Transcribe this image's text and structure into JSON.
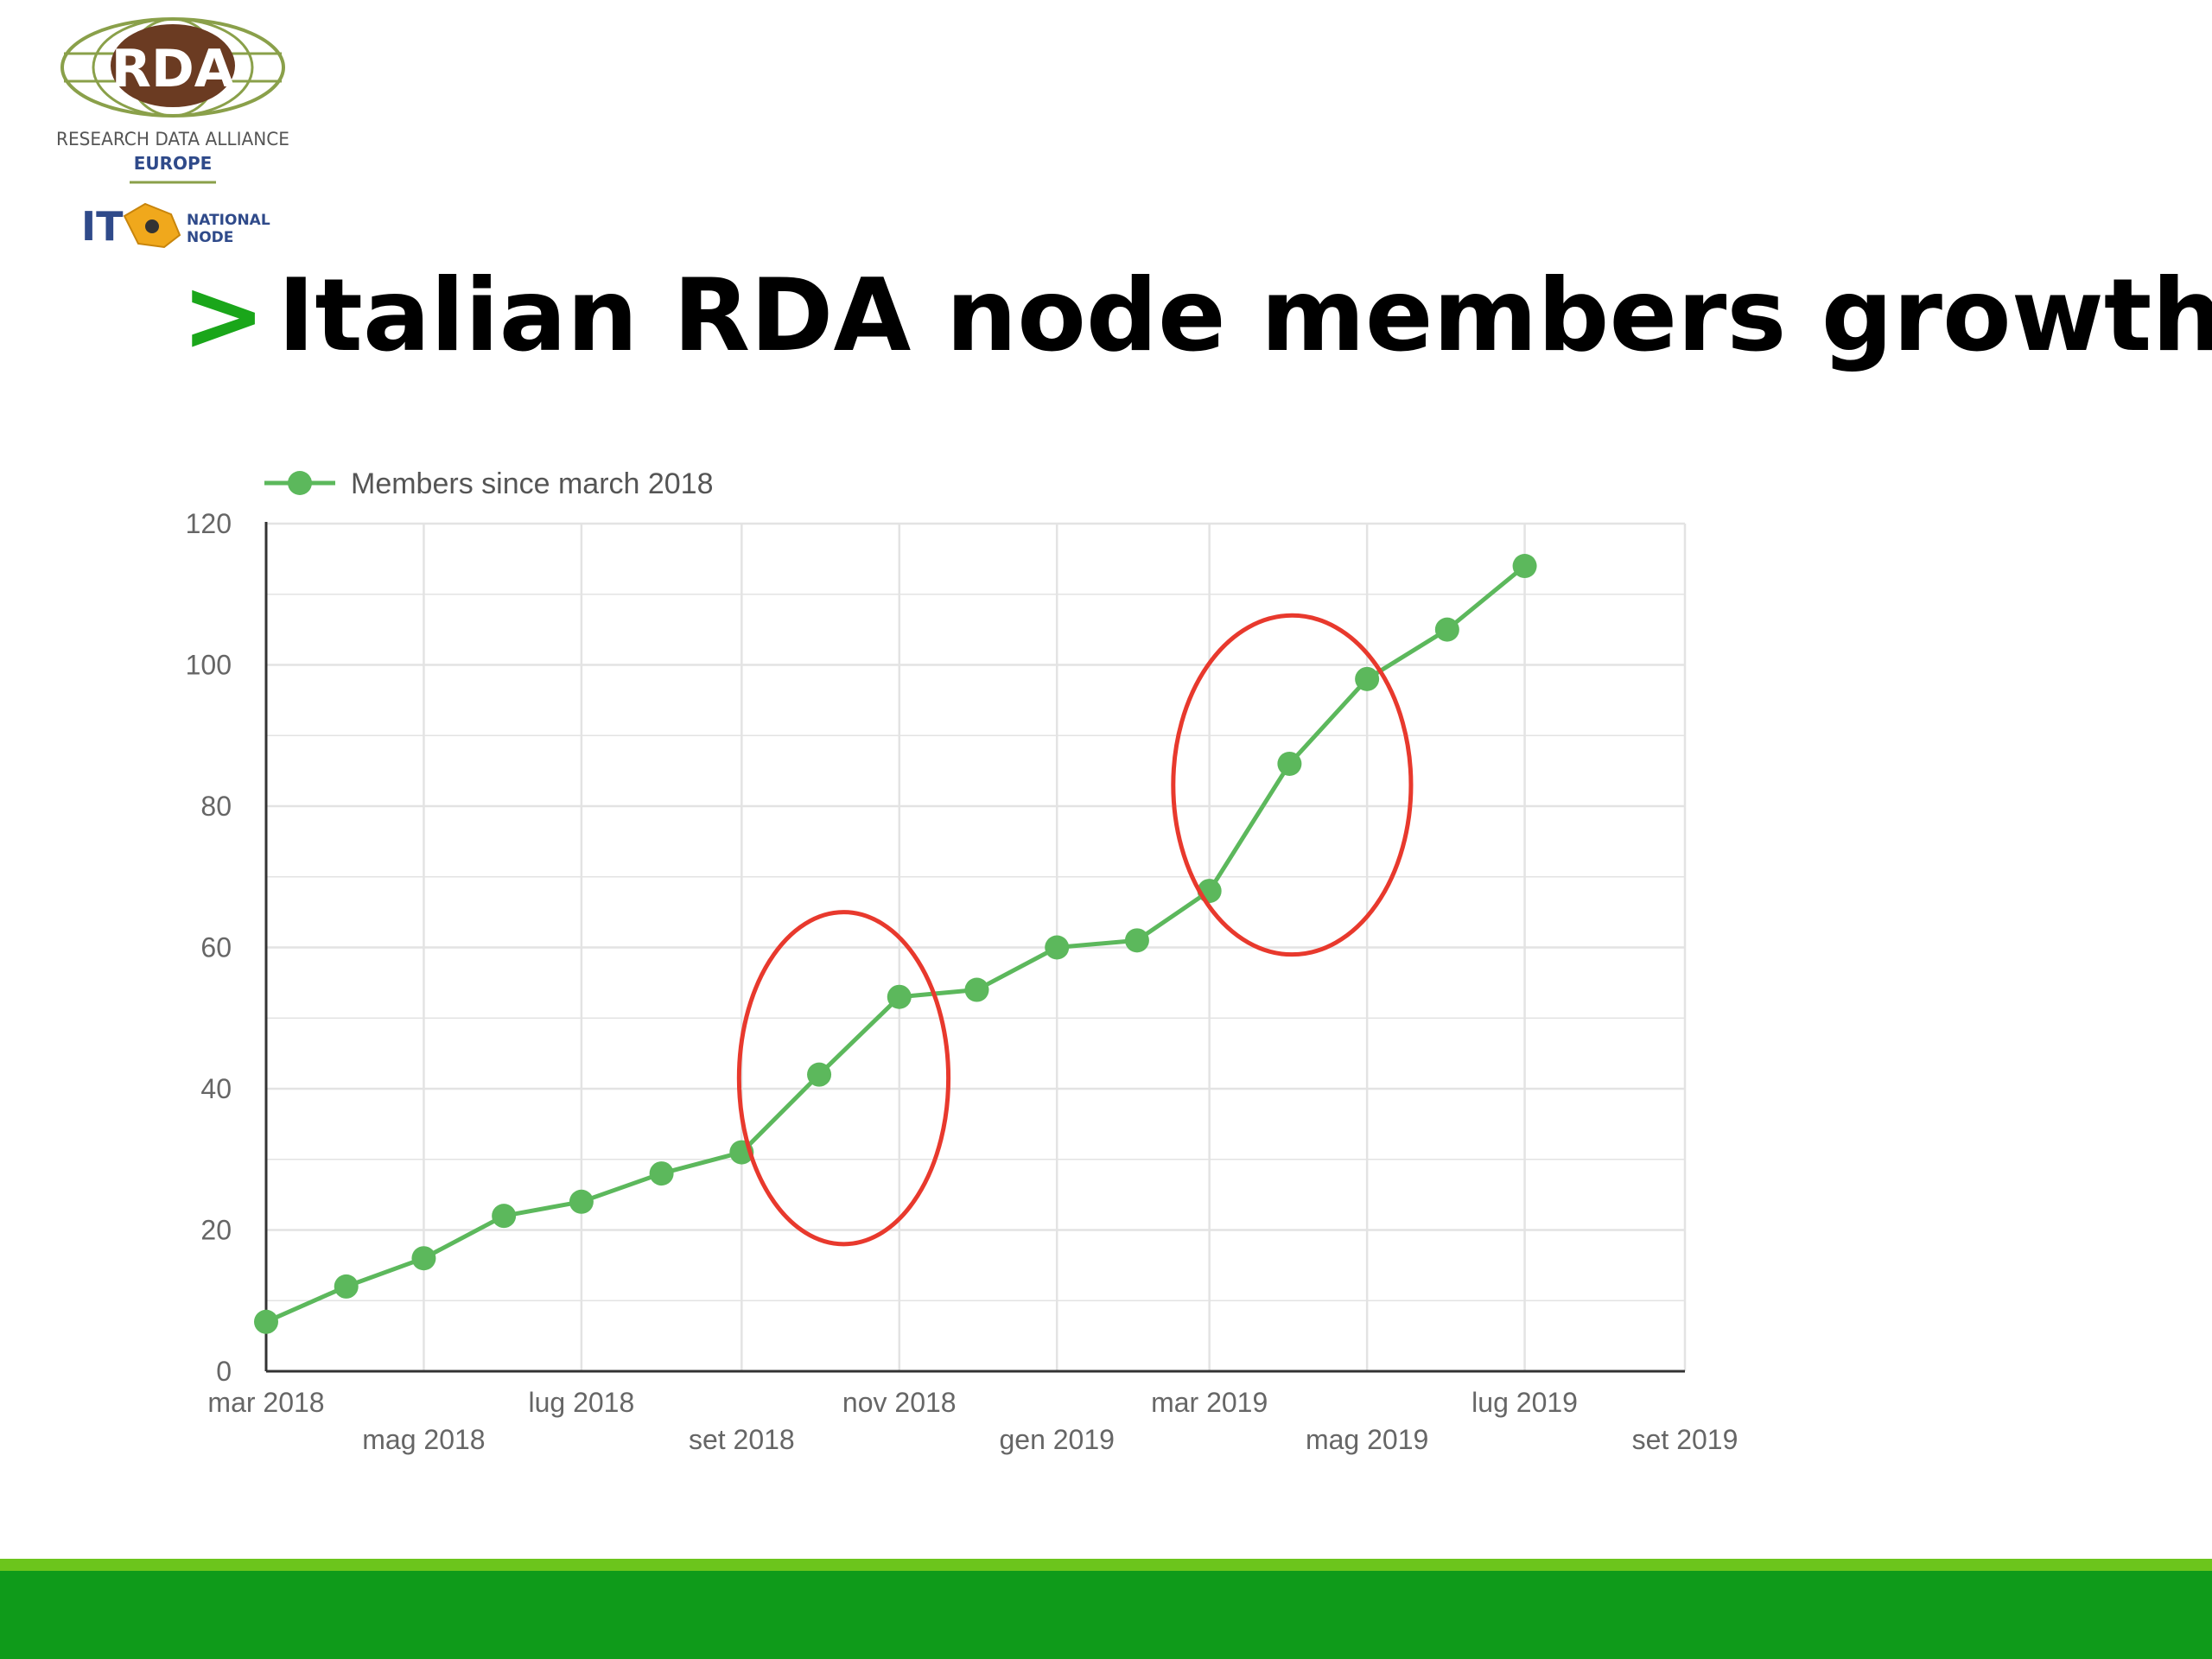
{
  "logo": {
    "badge_text": "RDA",
    "line1": "RESEARCH DATA ALLIANCE",
    "line2": "EUROPE",
    "node_code": "IT",
    "node_label_1": "NATIONAL",
    "node_label_2": "NODE"
  },
  "slide": {
    "marker": ">",
    "title": "Italian RDA node members growth"
  },
  "colors": {
    "line": "#5cb85c",
    "annotation": "#e8392d",
    "grid": "#e3e3e3",
    "axis": "#333333",
    "title_marker": "#1aa61a",
    "footer_light": "#6cc51c",
    "footer_dark": "#0f9b1a"
  },
  "chart_data": {
    "type": "line",
    "title": "",
    "xlabel": "",
    "ylabel": "",
    "ylim": [
      0,
      120
    ],
    "yticks": [
      0,
      20,
      40,
      60,
      80,
      100,
      120
    ],
    "xlim": [
      "2018-03-01",
      "2019-09-01"
    ],
    "xtick_labels": [
      "mar 2018",
      "mag 2018",
      "lug 2018",
      "set 2018",
      "nov 2018",
      "gen 2019",
      "mar 2019",
      "mag 2019",
      "lug 2019",
      "set 2019"
    ],
    "xtick_dates": [
      "2018-03-01",
      "2018-05-01",
      "2018-07-01",
      "2018-09-01",
      "2018-11-01",
      "2019-01-01",
      "2019-03-01",
      "2019-05-01",
      "2019-07-01",
      "2019-09-01"
    ],
    "grid": true,
    "legend_position": "top-left",
    "series": [
      {
        "name": "Members since march 2018",
        "x": [
          "2018-03-01",
          "2018-04-01",
          "2018-05-01",
          "2018-06-01",
          "2018-07-01",
          "2018-08-01",
          "2018-09-01",
          "2018-10-01",
          "2018-11-01",
          "2018-12-01",
          "2019-01-01",
          "2019-02-01",
          "2019-03-01",
          "2019-04-01",
          "2019-05-01",
          "2019-06-01",
          "2019-07-01"
        ],
        "y": [
          7,
          12,
          16,
          22,
          24,
          28,
          31,
          42,
          53,
          54,
          60,
          61,
          68,
          86,
          98,
          105,
          114
        ]
      }
    ],
    "annotations": [
      {
        "type": "ellipse",
        "x_range": [
          "2018-08-31",
          "2018-11-20"
        ],
        "y_range": [
          18,
          65
        ]
      },
      {
        "type": "ellipse",
        "x_range": [
          "2019-02-15",
          "2019-05-18"
        ],
        "y_range": [
          59,
          107
        ]
      }
    ]
  }
}
